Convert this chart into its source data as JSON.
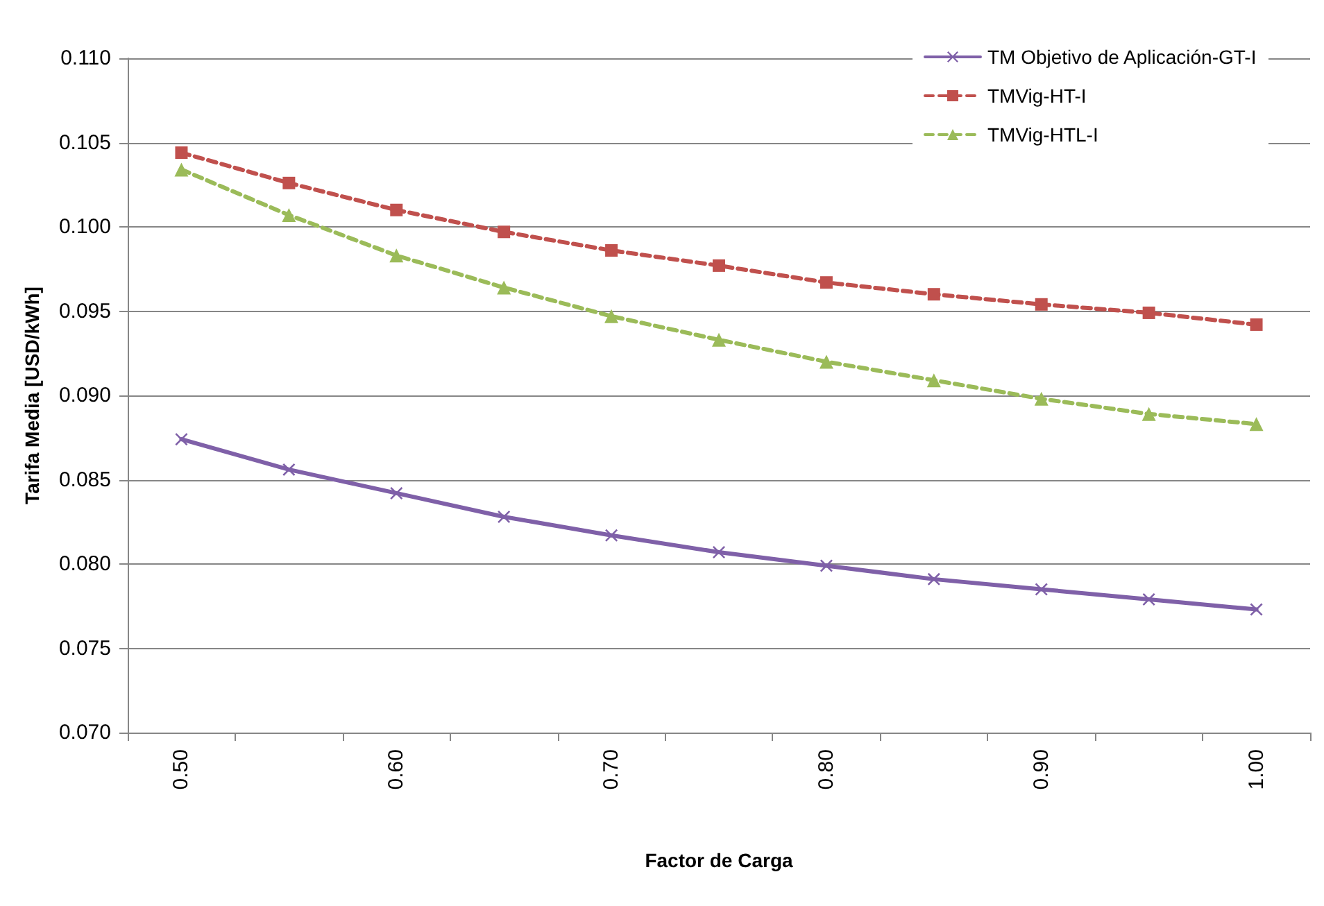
{
  "chart_data": {
    "type": "line",
    "xlabel": "Factor de Carga",
    "ylabel": "Tarifa Media [USD/kWh]",
    "categories": [
      "0.50",
      null,
      "0.60",
      null,
      "0.70",
      null,
      "0.80",
      null,
      "0.90",
      null,
      "1.00"
    ],
    "series": [
      {
        "name": "TM Objetivo de Aplicación-GT-I",
        "color": "#7f60a8",
        "marker": "cross",
        "line_style": "solid",
        "values": [
          0.0874,
          0.0856,
          0.0842,
          0.0828,
          0.0817,
          0.0807,
          0.0799,
          0.0791,
          0.0785,
          0.0779,
          0.0773
        ]
      },
      {
        "name": "TMVig-HT-I",
        "color": "#c0504d",
        "marker": "square",
        "line_style": "dashed",
        "values": [
          0.1044,
          0.1026,
          0.101,
          0.0997,
          0.0986,
          0.0977,
          0.0967,
          0.096,
          0.0954,
          0.0949,
          0.0942
        ]
      },
      {
        "name": "TMVig-HTL-I",
        "color": "#9bbb59",
        "marker": "triangle",
        "line_style": "dashed",
        "values": [
          0.1034,
          0.1007,
          0.0983,
          0.0964,
          0.0947,
          0.0933,
          0.092,
          0.0909,
          0.0898,
          0.0889,
          0.0883
        ]
      }
    ],
    "ylim": [
      0.07,
      0.11
    ],
    "yticks": [
      {
        "value": 0.07,
        "label": "0.070"
      },
      {
        "value": 0.075,
        "label": "0.075"
      },
      {
        "value": 0.08,
        "label": "0.080"
      },
      {
        "value": 0.085,
        "label": "0.085"
      },
      {
        "value": 0.09,
        "label": "0.090"
      },
      {
        "value": 0.095,
        "label": "0.095"
      },
      {
        "value": 0.1,
        "label": "0.100"
      },
      {
        "value": 0.105,
        "label": "0.105"
      },
      {
        "value": 0.11,
        "label": "0.110"
      }
    ],
    "grid": "y",
    "legend": "top right"
  }
}
